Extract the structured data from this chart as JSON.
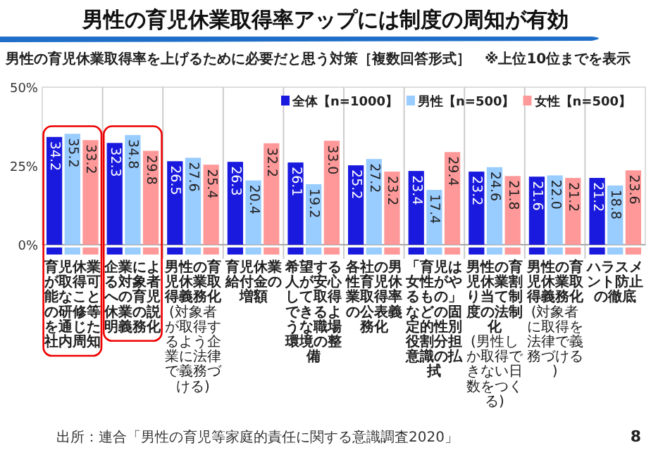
{
  "chart_data": {
    "type": "bar",
    "title": "男性の育児休業取得率アップには制度の周知が有効",
    "subtitle": "男性の育児休業取得率を上げるために必要だと思う対策［複数回答形式］　※上位10位までを表示",
    "categories": [
      "育児休業が取得可能なことの研修等を通じた社内周知",
      "企業による対象者への育児休業の説明義務化",
      "男性の育児休業取得義務化(対象者が取得するよう企業に法律で義務づける)",
      "育児休業給付金の増額",
      "希望する人が安心して取得できるような職場環境の整備",
      "各社の男性育児休業取得率の公表義務化",
      "「育児は女性がやるもの」などの固定的性別役割分担意識の払拭",
      "男性の育児休業割り当て制度の法制化(男性しか取得できない日数をつくる)",
      "男性の育児休業取得義務化(対象者に取得を法律で義務づける)",
      "ハラスメント防止の徹底"
    ],
    "series": [
      {
        "name": "全体【n=1000】",
        "color": "#1a1adf",
        "values": [
          34.2,
          32.3,
          26.5,
          26.3,
          26.1,
          25.2,
          23.4,
          23.2,
          21.6,
          21.2
        ],
        "value_labels": [
          "34.2",
          "32.3",
          "26.5",
          "26.3",
          "26.1",
          "25.2",
          "23.4",
          "23.2",
          "21.6",
          "21.2"
        ]
      },
      {
        "name": "男性【n=500】",
        "color": "#99ccff",
        "values": [
          35.2,
          34.8,
          27.6,
          20.4,
          19.2,
          27.2,
          17.4,
          24.6,
          22.0,
          18.8
        ],
        "value_labels": [
          "35.2",
          "34.8",
          "27.6",
          "20.4",
          "19.2",
          "27.2",
          "17.4",
          "24.6",
          "22.0",
          "18.8"
        ]
      },
      {
        "name": "女性【n=500】",
        "color": "#ff9999",
        "values": [
          33.2,
          29.8,
          25.4,
          32.2,
          33.0,
          23.2,
          29.4,
          21.8,
          21.2,
          23.6
        ],
        "value_labels": [
          "33.2",
          "29.8",
          "25.4",
          "32.2",
          "33.0",
          "23.2",
          "29.4",
          "21.8",
          "21.2",
          "23.6"
        ]
      }
    ],
    "ylim": [
      0,
      50
    ],
    "yticks": [
      {
        "value": 0,
        "label": "0%"
      },
      {
        "value": 25,
        "label": "25%"
      },
      {
        "value": 50,
        "label": "50%"
      }
    ],
    "grid": "x",
    "legend": "top right",
    "annotations": [
      "出所：連合「男性の育児等家庭的責任に関する意識調査2020」",
      "8"
    ]
  }
}
